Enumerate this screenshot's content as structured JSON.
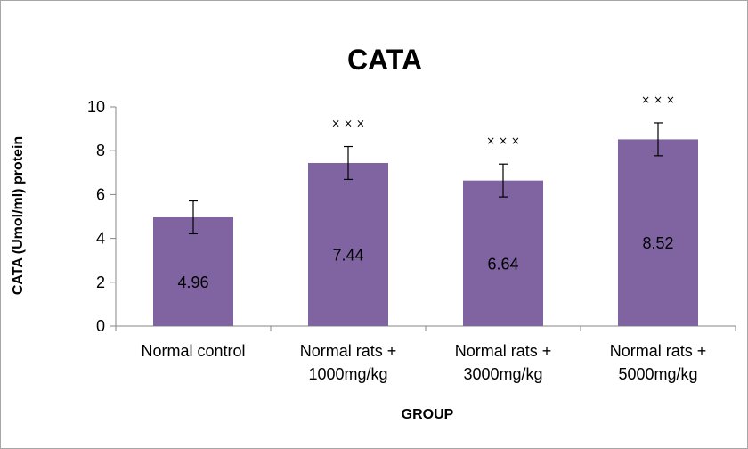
{
  "chart_data": {
    "type": "bar",
    "title": "CATA",
    "xlabel": "GROUP",
    "ylabel": "CATA (Umol/ml) protein",
    "categories": [
      [
        "Normal control"
      ],
      [
        "Normal rats +",
        "1000mg/kg"
      ],
      [
        "Normal rats +",
        "3000mg/kg"
      ],
      [
        "Normal rats +",
        "5000mg/kg"
      ]
    ],
    "values": [
      4.96,
      7.44,
      6.64,
      8.52
    ],
    "error": [
      0.75,
      0.75,
      0.75,
      0.75
    ],
    "data_labels": [
      "4.96",
      "7.44",
      "6.64",
      "8.52"
    ],
    "significance_markers": [
      "",
      "×  ×  ×",
      "×  ×  ×",
      "×  ×  ×"
    ],
    "ylim": [
      0,
      10
    ],
    "yticks": [
      0,
      2,
      4,
      6,
      8,
      10
    ],
    "grid": false,
    "legend": "none",
    "colors": {
      "bar": "#8064a2",
      "axis": "#868686",
      "frame": "#a6a6a6"
    }
  }
}
